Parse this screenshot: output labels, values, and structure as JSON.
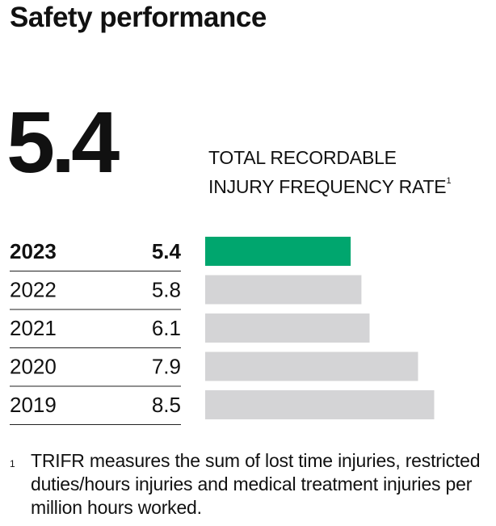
{
  "title": "Safety performance",
  "headline_value": "5.4",
  "metric_label_line1": "TOTAL RECORDABLE",
  "metric_label_line2": "INJURY FREQUENCY RATE",
  "metric_footnote_mark": "1",
  "footnote": {
    "mark": "1",
    "text": "TRIFR measures the sum of lost time injuries, restricted duties/hours injuries and medical treatment injuries per million hours worked."
  },
  "colors": {
    "highlight": "#00a66e",
    "bar": "#d4d4d6",
    "text": "#111111",
    "rule": "#222222"
  },
  "chart_data": {
    "type": "bar",
    "orientation": "horizontal",
    "categories": [
      "2023",
      "2022",
      "2021",
      "2020",
      "2019"
    ],
    "values": [
      5.4,
      5.8,
      6.1,
      7.9,
      8.5
    ],
    "labels": [
      "5.4",
      "5.8",
      "6.1",
      "7.9",
      "8.5"
    ],
    "highlight_category": "2023",
    "xlim": [
      0,
      8.5
    ],
    "title": "",
    "xlabel": "",
    "ylabel": ""
  }
}
